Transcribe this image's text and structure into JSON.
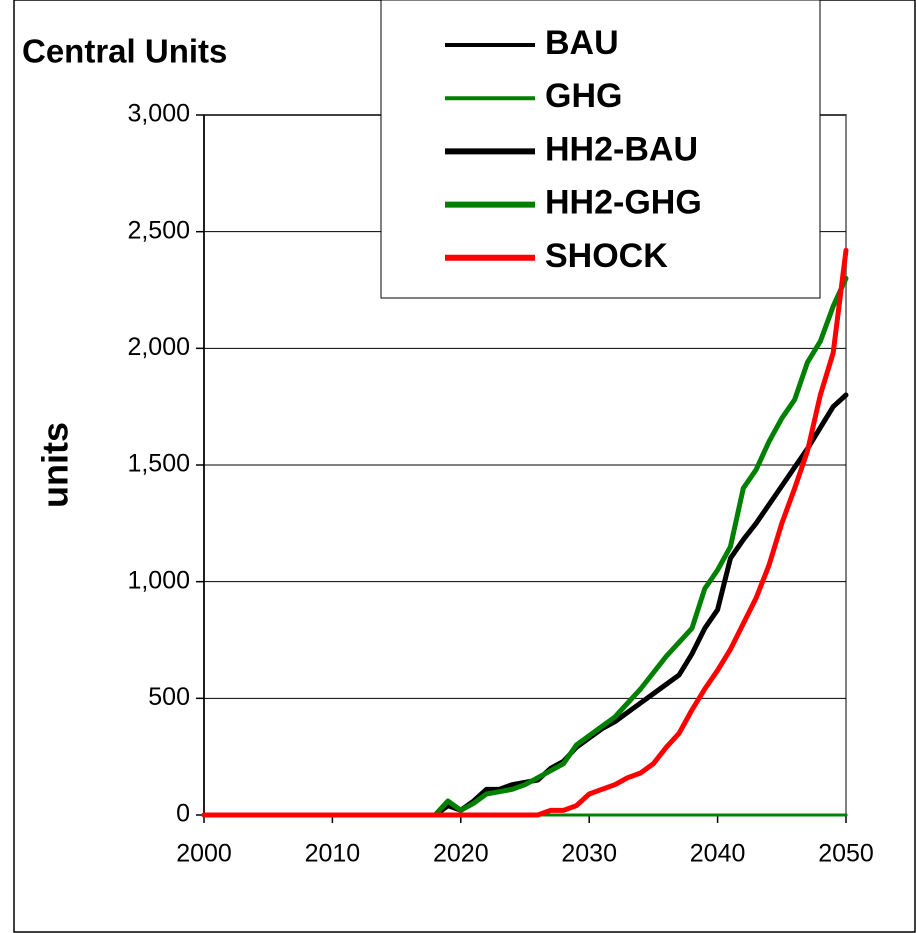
{
  "chart_data": {
    "type": "line",
    "title": "Central Units",
    "y_label": "units",
    "x": [
      2000,
      2001,
      2002,
      2003,
      2004,
      2005,
      2006,
      2007,
      2008,
      2009,
      2010,
      2011,
      2012,
      2013,
      2014,
      2015,
      2016,
      2017,
      2018,
      2019,
      2020,
      2021,
      2022,
      2023,
      2024,
      2025,
      2026,
      2027,
      2028,
      2029,
      2030,
      2031,
      2032,
      2033,
      2034,
      2035,
      2036,
      2037,
      2038,
      2039,
      2040,
      2041,
      2042,
      2043,
      2044,
      2045,
      2046,
      2047,
      2048,
      2049,
      2050
    ],
    "series": [
      {
        "name": "BAU",
        "color": "#000000",
        "line_width": 3,
        "values": [
          0,
          0,
          0,
          0,
          0,
          0,
          0,
          0,
          0,
          0,
          0,
          0,
          0,
          0,
          0,
          0,
          0,
          0,
          0,
          0,
          0,
          0,
          0,
          0,
          0,
          0,
          0,
          0,
          0,
          0,
          0,
          0,
          0,
          0,
          0,
          0,
          0,
          0,
          0,
          0,
          0,
          0,
          0,
          0,
          0,
          0,
          0,
          0,
          0,
          0,
          0
        ]
      },
      {
        "name": "GHG",
        "color": "#008000",
        "line_width": 3,
        "values": [
          0,
          0,
          0,
          0,
          0,
          0,
          0,
          0,
          0,
          0,
          0,
          0,
          0,
          0,
          0,
          0,
          0,
          0,
          0,
          0,
          0,
          0,
          0,
          0,
          0,
          0,
          0,
          0,
          0,
          0,
          0,
          0,
          0,
          0,
          0,
          0,
          0,
          0,
          0,
          0,
          0,
          0,
          0,
          0,
          0,
          0,
          0,
          0,
          0,
          0,
          0
        ]
      },
      {
        "name": "HH2-BAU",
        "color": "#000000",
        "line_width": 5,
        "values": [
          0,
          0,
          0,
          0,
          0,
          0,
          0,
          0,
          0,
          0,
          0,
          0,
          0,
          0,
          0,
          0,
          0,
          0,
          0,
          40,
          20,
          60,
          110,
          110,
          130,
          140,
          150,
          200,
          230,
          290,
          330,
          370,
          400,
          440,
          480,
          520,
          560,
          600,
          690,
          800,
          880,
          1100,
          1180,
          1250,
          1330,
          1410,
          1490,
          1570,
          1660,
          1750,
          1800
        ]
      },
      {
        "name": "HH2-GHG",
        "color": "#008000",
        "line_width": 5,
        "values": [
          0,
          0,
          0,
          0,
          0,
          0,
          0,
          0,
          0,
          0,
          0,
          0,
          0,
          0,
          0,
          0,
          0,
          0,
          0,
          60,
          20,
          50,
          90,
          100,
          110,
          130,
          160,
          190,
          220,
          300,
          340,
          380,
          420,
          480,
          540,
          610,
          680,
          740,
          800,
          970,
          1050,
          1150,
          1400,
          1480,
          1600,
          1700,
          1780,
          1940,
          2030,
          2180,
          2300
        ]
      },
      {
        "name": "SHOCK",
        "color": "#ff0000",
        "line_width": 5,
        "values": [
          0,
          0,
          0,
          0,
          0,
          0,
          0,
          0,
          0,
          0,
          0,
          0,
          0,
          0,
          0,
          0,
          0,
          0,
          0,
          0,
          0,
          0,
          0,
          0,
          0,
          0,
          0,
          20,
          20,
          40,
          90,
          110,
          130,
          160,
          180,
          220,
          290,
          350,
          450,
          540,
          620,
          710,
          820,
          930,
          1070,
          1250,
          1400,
          1560,
          1800,
          1980,
          2420
        ]
      }
    ],
    "xlim": [
      2000,
      2050
    ],
    "xticks": [
      2000,
      2010,
      2020,
      2030,
      2040,
      2050
    ],
    "ylim": [
      0,
      3000
    ],
    "yticks": [
      0,
      500,
      {
        "value": 1000,
        "label": "1,000"
      },
      {
        "value": 1500,
        "label": "1,500"
      },
      {
        "value": 2000,
        "label": "2,000"
      },
      {
        "value": 2500,
        "label": "2,500"
      },
      {
        "value": 3000,
        "label": "3,000"
      }
    ],
    "grid": true,
    "legend": "top-right"
  }
}
